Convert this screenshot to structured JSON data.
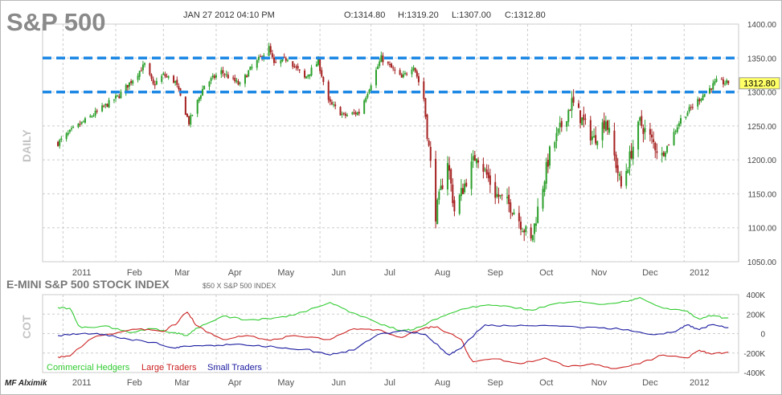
{
  "header": {
    "title": "S&P 500",
    "datetime": "JAN 27 2012 04:10 PM",
    "open": "O:1314.80",
    "high": "H:1319.20",
    "low": "L:1307.00",
    "close": "C:1312.80"
  },
  "price_panel": {
    "side_label": "DAILY",
    "last_price_badge": "1312.80",
    "dashed_levels": [
      1350,
      1300
    ]
  },
  "cot_panel": {
    "title": "E-MINI S&P 500 STOCK INDEX",
    "subtitle": "$50 X S&P 500 INDEX",
    "side_label": "COT",
    "legend": {
      "commercial": "Commercial Hedgers",
      "large": "Large Traders",
      "small": "Small Traders"
    }
  },
  "watermark": "MF Alximik",
  "colors": {
    "up_candle": "#2ca02c",
    "down_candle": "#a52020",
    "dashed_line": "#1e88e5",
    "commercial": "#33cc33",
    "large": "#cc2222",
    "small": "#1a1aa0",
    "badge_fill": "#ffff66",
    "grid": "#cccccc"
  },
  "chart_data": [
    {
      "type": "candlestick",
      "title": "S&P 500",
      "ylabel": "DAILY",
      "ylim": [
        1050,
        1400
      ],
      "yticks": [
        "1400.00",
        "1350.00",
        "1300.00",
        "1250.00",
        "1200.00",
        "1150.00",
        "1100.00",
        "1050.00"
      ],
      "x_tick_labels": [
        "2011",
        "Feb",
        "Mar",
        "Apr",
        "May",
        "Jun",
        "Jul",
        "Aug",
        "Sep",
        "Oct",
        "Nov",
        "Dec",
        "2012"
      ],
      "grid": true,
      "horizontal_lines": [
        1350,
        1300
      ],
      "last_price": 1312.8,
      "price_path": [
        [
          "2010-12-29",
          1225
        ],
        [
          "2011-01-07",
          1245
        ],
        [
          "2011-01-18",
          1265
        ],
        [
          "2011-02-03",
          1295
        ],
        [
          "2011-02-18",
          1340
        ],
        [
          "2011-02-23",
          1310
        ],
        [
          "2011-03-01",
          1325
        ],
        [
          "2011-03-08",
          1315
        ],
        [
          "2011-03-16",
          1255
        ],
        [
          "2011-03-25",
          1310
        ],
        [
          "2011-04-04",
          1330
        ],
        [
          "2011-04-15",
          1310
        ],
        [
          "2011-04-20",
          1330
        ],
        [
          "2011-05-02",
          1365
        ],
        [
          "2011-05-05",
          1340
        ],
        [
          "2011-05-13",
          1350
        ],
        [
          "2011-05-23",
          1320
        ],
        [
          "2011-05-31",
          1345
        ],
        [
          "2011-06-06",
          1285
        ],
        [
          "2011-06-15",
          1265
        ],
        [
          "2011-06-24",
          1270
        ],
        [
          "2011-07-07",
          1350
        ],
        [
          "2011-07-19",
          1320
        ],
        [
          "2011-07-26",
          1340
        ],
        [
          "2011-08-01",
          1290
        ],
        [
          "2011-08-08",
          1120
        ],
        [
          "2011-08-15",
          1200
        ],
        [
          "2011-08-19",
          1125
        ],
        [
          "2011-09-01",
          1210
        ],
        [
          "2011-09-12",
          1150
        ],
        [
          "2011-09-22",
          1130
        ],
        [
          "2011-10-03",
          1080
        ],
        [
          "2011-10-14",
          1210
        ],
        [
          "2011-10-27",
          1285
        ],
        [
          "2011-11-04",
          1250
        ],
        [
          "2011-11-09",
          1230
        ],
        [
          "2011-11-16",
          1260
        ],
        [
          "2011-11-25",
          1160
        ],
        [
          "2011-12-06",
          1255
        ],
        [
          "2011-12-19",
          1205
        ],
        [
          "2011-12-30",
          1260
        ],
        [
          "2012-01-10",
          1290
        ],
        [
          "2012-01-20",
          1315
        ],
        [
          "2012-01-27",
          1312.8
        ]
      ]
    },
    {
      "type": "line",
      "title": "E-MINI S&P 500 STOCK INDEX",
      "subtitle": "$50 X S&P 500 INDEX",
      "ylabel": "COT",
      "ylim": [
        -400000,
        400000
      ],
      "yticks": [
        "400K",
        "200K",
        "0",
        "-200K",
        "-400K"
      ],
      "x_tick_labels": [
        "2011",
        "Feb",
        "Mar",
        "Apr",
        "May",
        "Jun",
        "Jul",
        "Aug",
        "Sep",
        "Oct",
        "Nov",
        "Dec",
        "2012"
      ],
      "series": [
        {
          "name": "Commercial Hedgers",
          "points": [
            [
              "2010-12-29",
              270000
            ],
            [
              "2011-01-05",
              260000
            ],
            [
              "2011-01-12",
              60000
            ],
            [
              "2011-01-26",
              80000
            ],
            [
              "2011-02-09",
              10000
            ],
            [
              "2011-02-23",
              50000
            ],
            [
              "2011-03-08",
              10000
            ],
            [
              "2011-03-15",
              -20000
            ],
            [
              "2011-03-22",
              60000
            ],
            [
              "2011-04-05",
              180000
            ],
            [
              "2011-04-19",
              140000
            ],
            [
              "2011-05-03",
              150000
            ],
            [
              "2011-05-17",
              190000
            ],
            [
              "2011-06-07",
              320000
            ],
            [
              "2011-06-21",
              210000
            ],
            [
              "2011-07-05",
              110000
            ],
            [
              "2011-07-19",
              30000
            ],
            [
              "2011-07-26",
              40000
            ],
            [
              "2011-08-09",
              150000
            ],
            [
              "2011-08-23",
              250000
            ],
            [
              "2011-09-06",
              290000
            ],
            [
              "2011-09-20",
              280000
            ],
            [
              "2011-10-04",
              240000
            ],
            [
              "2011-10-18",
              310000
            ],
            [
              "2011-11-01",
              330000
            ],
            [
              "2011-11-15",
              300000
            ],
            [
              "2011-11-29",
              330000
            ],
            [
              "2011-12-06",
              370000
            ],
            [
              "2011-12-20",
              260000
            ],
            [
              "2012-01-03",
              230000
            ],
            [
              "2012-01-10",
              150000
            ],
            [
              "2012-01-17",
              180000
            ],
            [
              "2012-01-27",
              160000
            ]
          ]
        },
        {
          "name": "Large Traders",
          "points": [
            [
              "2010-12-29",
              -240000
            ],
            [
              "2011-01-05",
              -230000
            ],
            [
              "2011-01-19",
              -40000
            ],
            [
              "2011-02-02",
              10000
            ],
            [
              "2011-02-16",
              50000
            ],
            [
              "2011-03-01",
              20000
            ],
            [
              "2011-03-08",
              90000
            ],
            [
              "2011-03-15",
              220000
            ],
            [
              "2011-03-22",
              70000
            ],
            [
              "2011-04-05",
              -60000
            ],
            [
              "2011-04-19",
              -20000
            ],
            [
              "2011-05-03",
              -70000
            ],
            [
              "2011-05-17",
              -20000
            ],
            [
              "2011-06-07",
              -60000
            ],
            [
              "2011-06-21",
              50000
            ],
            [
              "2011-07-05",
              40000
            ],
            [
              "2011-07-19",
              -40000
            ],
            [
              "2011-08-02",
              60000
            ],
            [
              "2011-08-09",
              70000
            ],
            [
              "2011-08-23",
              -60000
            ],
            [
              "2011-08-30",
              -290000
            ],
            [
              "2011-09-13",
              -260000
            ],
            [
              "2011-09-27",
              -310000
            ],
            [
              "2011-10-11",
              -250000
            ],
            [
              "2011-10-25",
              -340000
            ],
            [
              "2011-11-08",
              -310000
            ],
            [
              "2011-11-22",
              -360000
            ],
            [
              "2011-12-06",
              -310000
            ],
            [
              "2011-12-20",
              -220000
            ],
            [
              "2012-01-03",
              -250000
            ],
            [
              "2012-01-10",
              -170000
            ],
            [
              "2012-01-17",
              -210000
            ],
            [
              "2012-01-27",
              -190000
            ]
          ]
        },
        {
          "name": "Small Traders",
          "points": [
            [
              "2010-12-29",
              -20000
            ],
            [
              "2011-01-12",
              0
            ],
            [
              "2011-01-26",
              -10000
            ],
            [
              "2011-02-09",
              -60000
            ],
            [
              "2011-02-23",
              -90000
            ],
            [
              "2011-03-08",
              -150000
            ],
            [
              "2011-03-15",
              -130000
            ],
            [
              "2011-03-29",
              -120000
            ],
            [
              "2011-04-12",
              -110000
            ],
            [
              "2011-04-26",
              -120000
            ],
            [
              "2011-05-10",
              -150000
            ],
            [
              "2011-05-24",
              -160000
            ],
            [
              "2011-06-07",
              -220000
            ],
            [
              "2011-06-21",
              -170000
            ],
            [
              "2011-07-05",
              -10000
            ],
            [
              "2011-07-19",
              30000
            ],
            [
              "2011-08-02",
              -10000
            ],
            [
              "2011-08-09",
              -110000
            ],
            [
              "2011-08-16",
              -220000
            ],
            [
              "2011-08-23",
              -150000
            ],
            [
              "2011-09-06",
              90000
            ],
            [
              "2011-09-20",
              80000
            ],
            [
              "2011-10-04",
              80000
            ],
            [
              "2011-10-18",
              80000
            ],
            [
              "2011-11-01",
              60000
            ],
            [
              "2011-11-15",
              60000
            ],
            [
              "2011-11-29",
              40000
            ],
            [
              "2011-12-13",
              -10000
            ],
            [
              "2011-12-27",
              20000
            ],
            [
              "2012-01-03",
              90000
            ],
            [
              "2012-01-10",
              40000
            ],
            [
              "2012-01-17",
              90000
            ],
            [
              "2012-01-27",
              60000
            ]
          ]
        }
      ]
    }
  ]
}
